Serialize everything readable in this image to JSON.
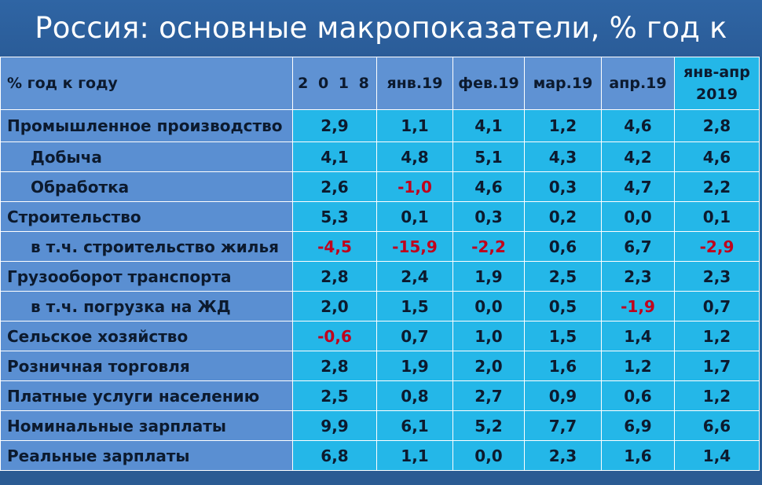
{
  "title": "Россия: основные макропоказатели, % год к году",
  "header": {
    "row_label": "% год к году",
    "columns": [
      "2 0 1 8",
      "янв.19",
      "фев.19",
      "мар.19",
      "апр.19"
    ],
    "last_column_line1": "янв-апр",
    "last_column_line2": "2019"
  },
  "rows": [
    {
      "label": "Промышленное производство",
      "values": [
        "2,9",
        "1,1",
        "4,1",
        "1,2",
        "4,6",
        "2,8"
      ]
    },
    {
      "label": "Добыча",
      "values": [
        "4,1",
        "4,8",
        "5,1",
        "4,3",
        "4,2",
        "4,6"
      ]
    },
    {
      "label": "Обработка",
      "values": [
        "2,6",
        "-1,0",
        "4,6",
        "0,3",
        "4,7",
        "2,2"
      ]
    },
    {
      "label": "Строительство",
      "values": [
        "5,3",
        "0,1",
        "0,3",
        "0,2",
        "0,0",
        "0,1"
      ]
    },
    {
      "label": "в т.ч. строительство жилья",
      "values": [
        "-4,5",
        "-15,9",
        "-2,2",
        "0,6",
        "6,7",
        "-2,9"
      ]
    },
    {
      "label": "Грузооборот транспорта",
      "values": [
        "2,8",
        "2,4",
        "1,9",
        "2,5",
        "2,3",
        "2,3"
      ]
    },
    {
      "label": "в т.ч. погрузка на ЖД",
      "values": [
        "2,0",
        "1,5",
        "0,0",
        "0,5",
        "-1,9",
        "0,7"
      ]
    },
    {
      "label": "Сельское хозяйство",
      "values": [
        "-0,6",
        "0,7",
        "1,0",
        "1,5",
        "1,4",
        "1,2"
      ]
    },
    {
      "label": "Розничная торговля",
      "values": [
        "2,8",
        "1,9",
        "2,0",
        "1,6",
        "1,2",
        "1,7"
      ]
    },
    {
      "label": "Платные услуги населению",
      "values": [
        "2,5",
        "0,8",
        "2,7",
        "0,9",
        "0,6",
        "1,2"
      ]
    },
    {
      "label": "Номинальные зарплаты",
      "values": [
        "9,9",
        "6,1",
        "5,2",
        "7,7",
        "6,9",
        "6,6"
      ]
    },
    {
      "label": "Реальные зарплаты",
      "values": [
        "6,8",
        "1,1",
        "0,0",
        "2,3",
        "1,6",
        "1,4"
      ]
    }
  ],
  "colors": {
    "background": "#2b5b93",
    "label_cell": "#5a8fd2",
    "value_cell": "#24b7e8",
    "negative_highlight": "#c0001c"
  }
}
